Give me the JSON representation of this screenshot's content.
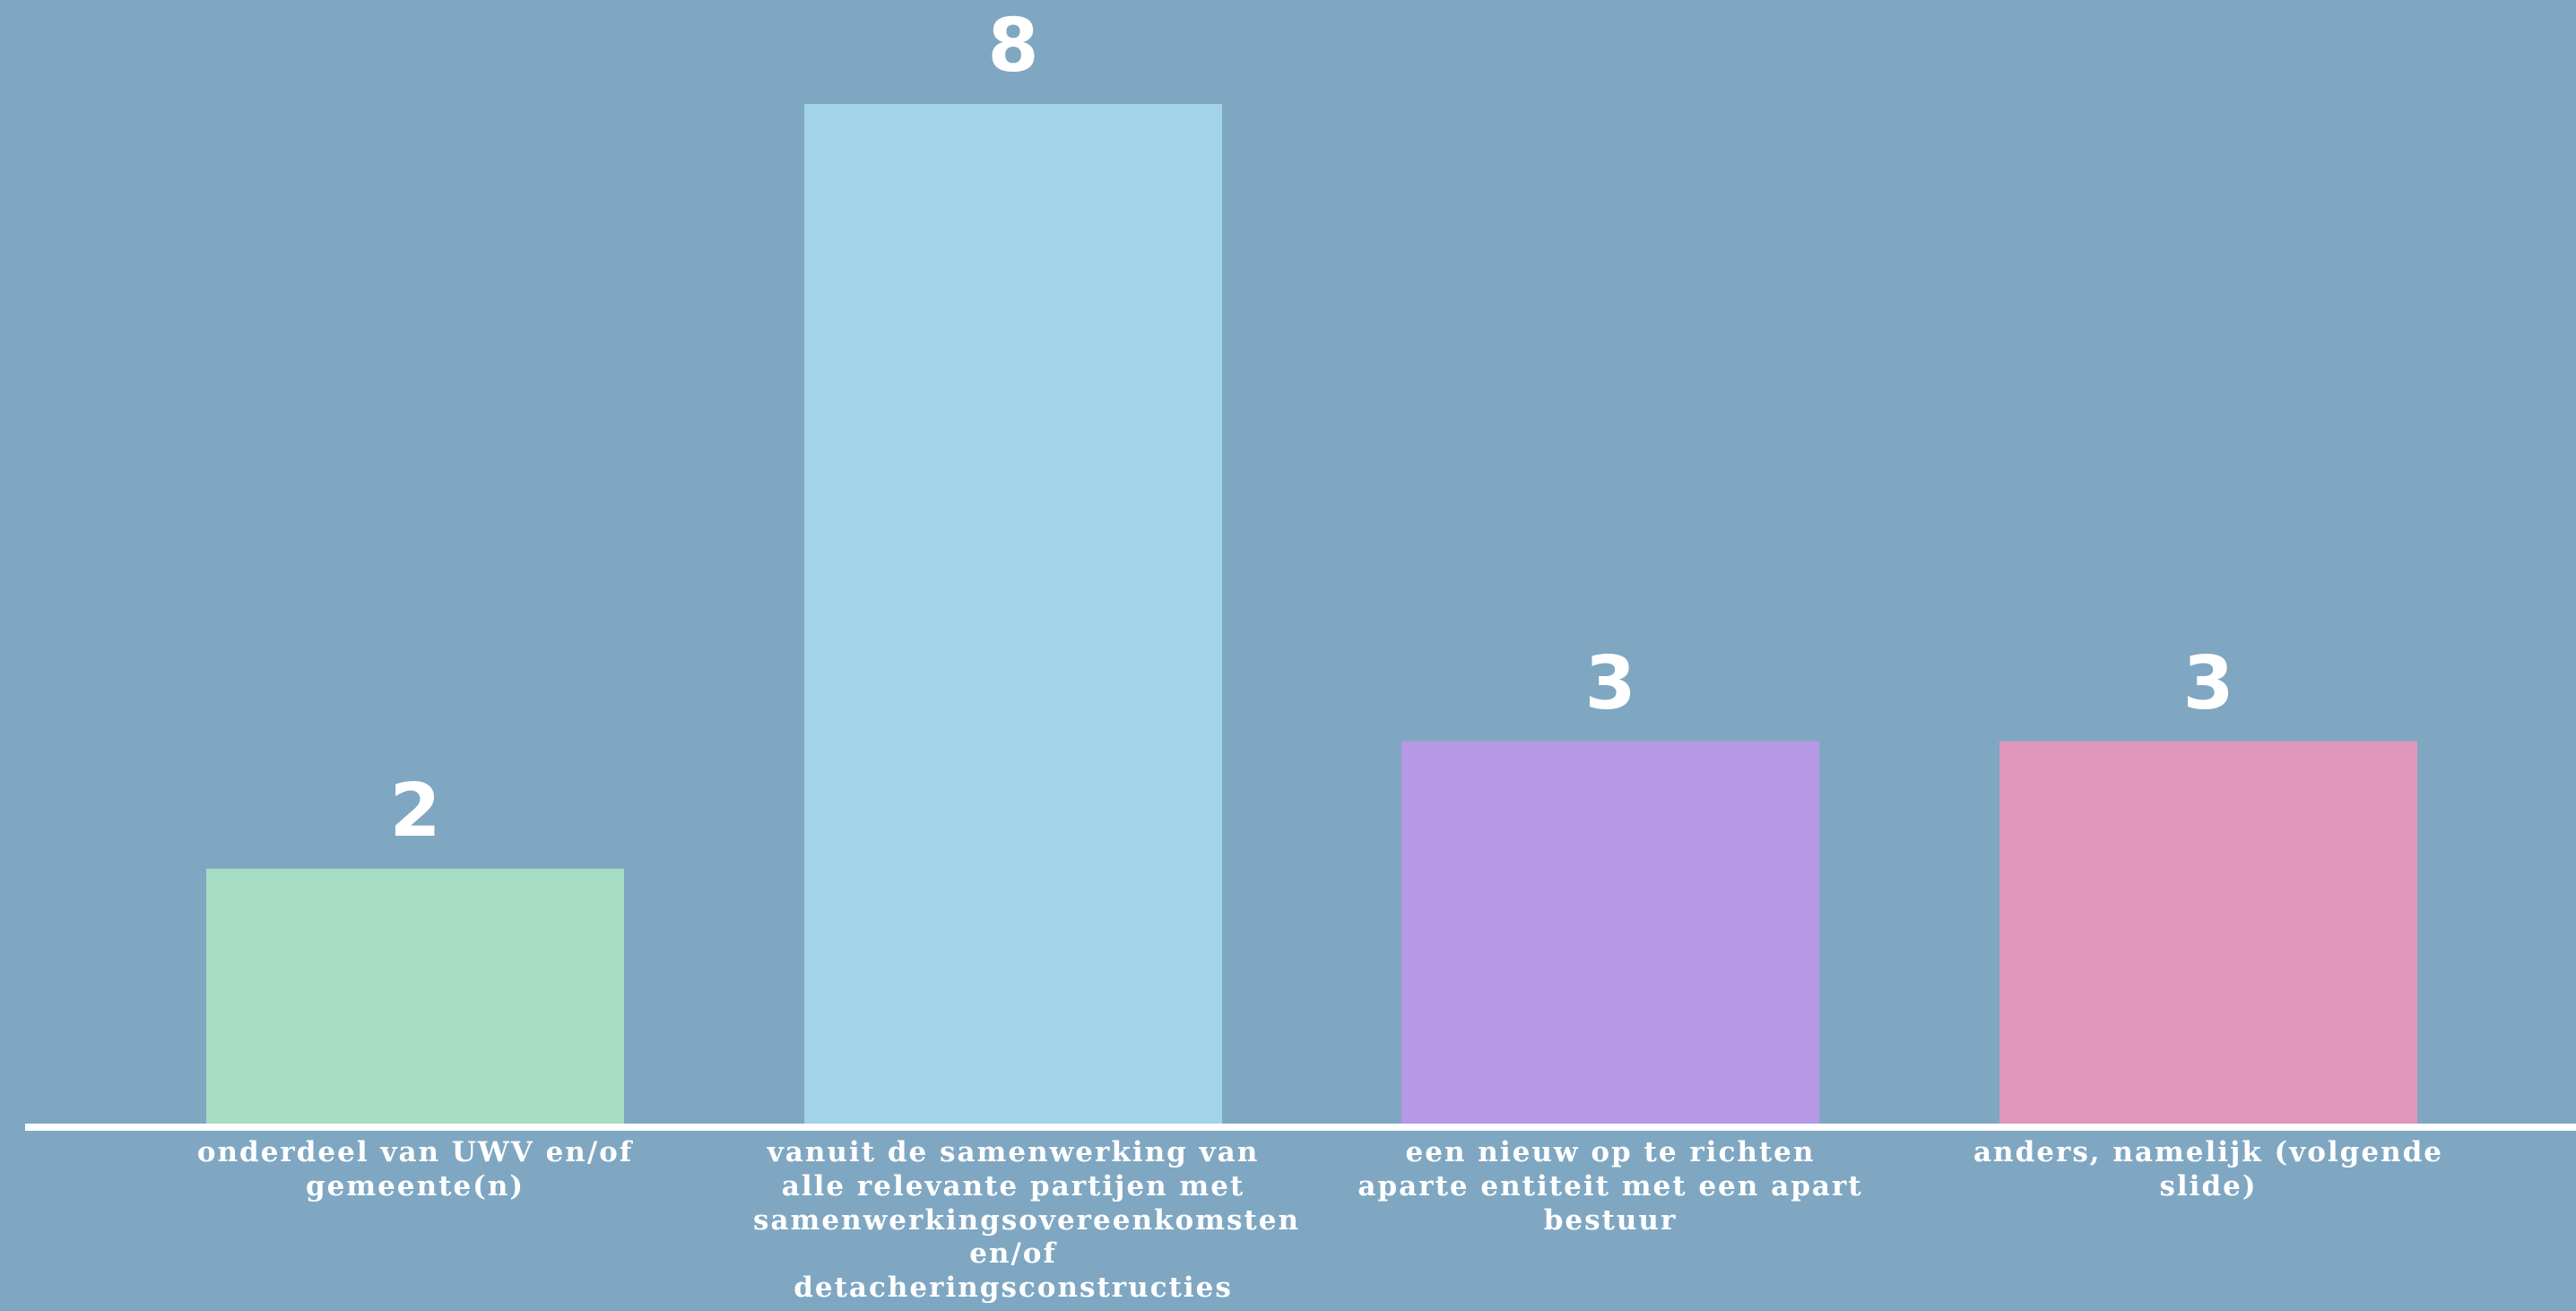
{
  "background_color": "#7fa7c2",
  "axis_color": "#ffffff",
  "chart_data": {
    "type": "bar",
    "title": "",
    "xlabel": "",
    "ylabel": "",
    "ylim": [
      0,
      8
    ],
    "grid": false,
    "categories": [
      "onderdeel van UWV en/of gemeente(n)",
      "vanuit de samenwerking van alle relevante partijen met samenwerkingsovereenkomsten en/of detacheringsconstructies",
      "een nieuw op te richten aparte entiteit met een apart bestuur",
      "anders, namelijk (volgende slide)"
    ],
    "values": [
      2,
      8,
      3,
      3
    ],
    "bar_colors": [
      "#a6dcc4",
      "#a2d3e6",
      "#b698e4",
      "#e097bb"
    ]
  }
}
